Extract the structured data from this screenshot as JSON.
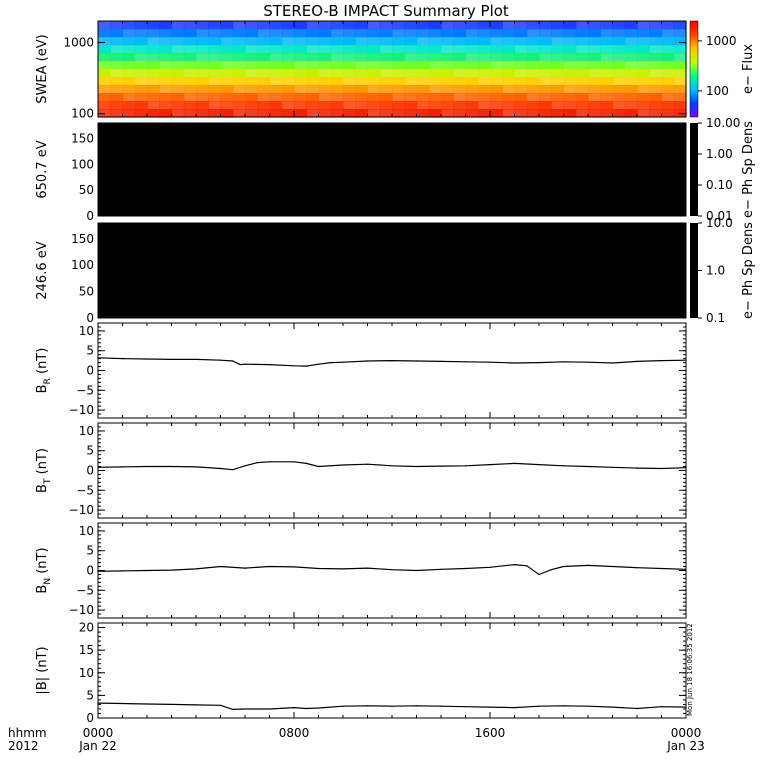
{
  "title": "STEREO-B IMPACT Summary Plot",
  "timestamp": "Mon Jun 18 16:06:35 2012",
  "x_axis": {
    "label_line1": "hhmm",
    "label_line2": "2012",
    "ticks": [
      {
        "hhmm": "0000",
        "date": "Jan 22",
        "hour": 0
      },
      {
        "hhmm": "0800",
        "date": "",
        "hour": 8
      },
      {
        "hhmm": "1600",
        "date": "",
        "hour": 16
      },
      {
        "hhmm": "0000",
        "date": "Jan 23",
        "hour": 24
      }
    ]
  },
  "chart_data": [
    {
      "type": "heatmap",
      "ylabel": "SWEA (eV)",
      "y_scale": "log",
      "ylim": [
        90,
        2000
      ],
      "yticks": [
        {
          "value": 100,
          "label": "100"
        },
        {
          "value": 1000,
          "label": "1000"
        }
      ],
      "colorbar": {
        "label": "e− Flux",
        "scale": "log",
        "ticks": [
          {
            "value": 100,
            "label": "100"
          },
          {
            "value": 1000,
            "label": "1000"
          }
        ],
        "colors": [
          "#8000ff",
          "#0040ff",
          "#00c0ff",
          "#00ff80",
          "#c0ff00",
          "#ffc000",
          "#ff4000",
          "#ff0000"
        ]
      },
      "energy_bands_eV": [
        2000,
        1500,
        1100,
        800,
        600,
        450,
        330,
        250,
        190,
        150,
        120,
        100
      ],
      "band_colors": [
        "#1a3cff",
        "#0078ff",
        "#00b8ff",
        "#00e8c8",
        "#18f070",
        "#70ff20",
        "#c8f000",
        "#ffd000",
        "#ff9800",
        "#ff6000",
        "#ff3800",
        "#f02000"
      ]
    },
    {
      "type": "heatmap",
      "ylabel": "650.7 eV",
      "ylim": [
        0,
        180
      ],
      "yticks": [
        {
          "value": 0,
          "label": "0"
        },
        {
          "value": 50,
          "label": "50"
        },
        {
          "value": 100,
          "label": "100"
        },
        {
          "value": 150,
          "label": "150"
        }
      ],
      "fill": "#000000",
      "colorbar": {
        "label": "e− Ph Sp Dens",
        "scale": "log",
        "ticks": [
          {
            "value": 0.01,
            "label": "0.01"
          },
          {
            "value": 0.1,
            "label": "0.10"
          },
          {
            "value": 1,
            "label": "1.00"
          },
          {
            "value": 10,
            "label": "10.00"
          }
        ]
      }
    },
    {
      "type": "heatmap",
      "ylabel": "246.6 eV",
      "ylim": [
        0,
        180
      ],
      "yticks": [
        {
          "value": 0,
          "label": "0"
        },
        {
          "value": 50,
          "label": "50"
        },
        {
          "value": 100,
          "label": "100"
        },
        {
          "value": 150,
          "label": "150"
        }
      ],
      "fill": "#000000",
      "colorbar": {
        "label": "e− Ph Sp Dens",
        "scale": "log",
        "ticks": [
          {
            "value": 0.1,
            "label": "0.1"
          },
          {
            "value": 1,
            "label": "1.0"
          },
          {
            "value": 10,
            "label": "10.0"
          }
        ]
      }
    },
    {
      "type": "line",
      "ylabel_main": "B",
      "ylabel_sub": "R",
      "ylabel_unit": " (nT)",
      "ylim": [
        -12,
        12
      ],
      "yticks": [
        {
          "value": -10,
          "label": "−10"
        },
        {
          "value": -5,
          "label": "−5"
        },
        {
          "value": 0,
          "label": "0"
        },
        {
          "value": 5,
          "label": "5"
        },
        {
          "value": 10,
          "label": "10"
        }
      ],
      "series": [
        {
          "x": [
            0,
            1,
            2,
            3,
            4,
            5,
            5.5,
            5.8,
            6,
            7,
            8,
            8.5,
            9,
            9.5,
            10,
            11,
            12,
            13,
            14,
            15,
            16,
            17,
            18,
            19,
            20,
            21,
            22,
            23,
            24
          ],
          "y": [
            3.2,
            3.0,
            2.9,
            2.8,
            2.8,
            2.6,
            2.4,
            1.5,
            1.6,
            1.5,
            1.2,
            1.1,
            1.6,
            2.0,
            2.1,
            2.4,
            2.5,
            2.4,
            2.3,
            2.2,
            2.1,
            1.9,
            2.0,
            2.2,
            2.1,
            1.9,
            2.3,
            2.5,
            2.6
          ]
        }
      ]
    },
    {
      "type": "line",
      "ylabel_main": "B",
      "ylabel_sub": "T",
      "ylabel_unit": " (nT)",
      "ylim": [
        -12,
        12
      ],
      "yticks": [
        {
          "value": -10,
          "label": "−10"
        },
        {
          "value": -5,
          "label": "−5"
        },
        {
          "value": 0,
          "label": "0"
        },
        {
          "value": 5,
          "label": "5"
        },
        {
          "value": 10,
          "label": "10"
        }
      ],
      "series": [
        {
          "x": [
            0,
            1,
            2,
            3,
            4,
            5,
            5.5,
            6,
            6.5,
            7,
            8,
            8.5,
            9,
            10,
            11,
            12,
            13,
            14,
            15,
            16,
            17,
            18,
            19,
            20,
            21,
            22,
            23,
            24
          ],
          "y": [
            0.8,
            0.9,
            1.0,
            1.0,
            0.9,
            0.5,
            0.2,
            1.2,
            2.0,
            2.2,
            2.2,
            1.8,
            1.0,
            1.4,
            1.6,
            1.2,
            1.0,
            1.1,
            1.2,
            1.5,
            1.8,
            1.5,
            1.2,
            1.0,
            0.8,
            0.6,
            0.5,
            0.7
          ]
        }
      ]
    },
    {
      "type": "line",
      "ylabel_main": "B",
      "ylabel_sub": "N",
      "ylabel_unit": " (nT)",
      "ylim": [
        -12,
        12
      ],
      "yticks": [
        {
          "value": -10,
          "label": "−10"
        },
        {
          "value": -5,
          "label": "−5"
        },
        {
          "value": 0,
          "label": "0"
        },
        {
          "value": 5,
          "label": "5"
        },
        {
          "value": 10,
          "label": "10"
        }
      ],
      "series": [
        {
          "x": [
            0,
            1,
            2,
            3,
            4,
            5,
            6,
            7,
            8,
            9,
            10,
            11,
            12,
            13,
            14,
            15,
            16,
            17,
            17.5,
            18,
            18.5,
            19,
            20,
            21,
            22,
            23,
            24
          ],
          "y": [
            -0.2,
            -0.1,
            0.0,
            0.1,
            0.4,
            1.0,
            0.6,
            1.0,
            0.9,
            0.5,
            0.4,
            0.6,
            0.2,
            0.0,
            0.3,
            0.5,
            0.8,
            1.5,
            1.2,
            -1.0,
            0.2,
            1.0,
            1.3,
            1.0,
            0.7,
            0.5,
            0.3
          ]
        }
      ]
    },
    {
      "type": "line",
      "ylabel": "|B| (nT)",
      "ylim": [
        0,
        21
      ],
      "yticks": [
        {
          "value": 0,
          "label": "0"
        },
        {
          "value": 5,
          "label": "5"
        },
        {
          "value": 10,
          "label": "10"
        },
        {
          "value": 15,
          "label": "15"
        },
        {
          "value": 20,
          "label": "20"
        }
      ],
      "series": [
        {
          "x": [
            0,
            1,
            2,
            3,
            4,
            5,
            5.5,
            6,
            7,
            8,
            8.5,
            9,
            10,
            11,
            12,
            13,
            14,
            15,
            16,
            17,
            18,
            19,
            20,
            21,
            22,
            23,
            24
          ],
          "y": [
            3.3,
            3.2,
            3.1,
            3.0,
            2.9,
            2.8,
            1.9,
            2.0,
            2.0,
            2.3,
            2.1,
            2.2,
            2.6,
            2.7,
            2.6,
            2.7,
            2.6,
            2.5,
            2.4,
            2.3,
            2.6,
            2.7,
            2.6,
            2.4,
            2.1,
            2.5,
            2.4
          ]
        }
      ]
    }
  ]
}
